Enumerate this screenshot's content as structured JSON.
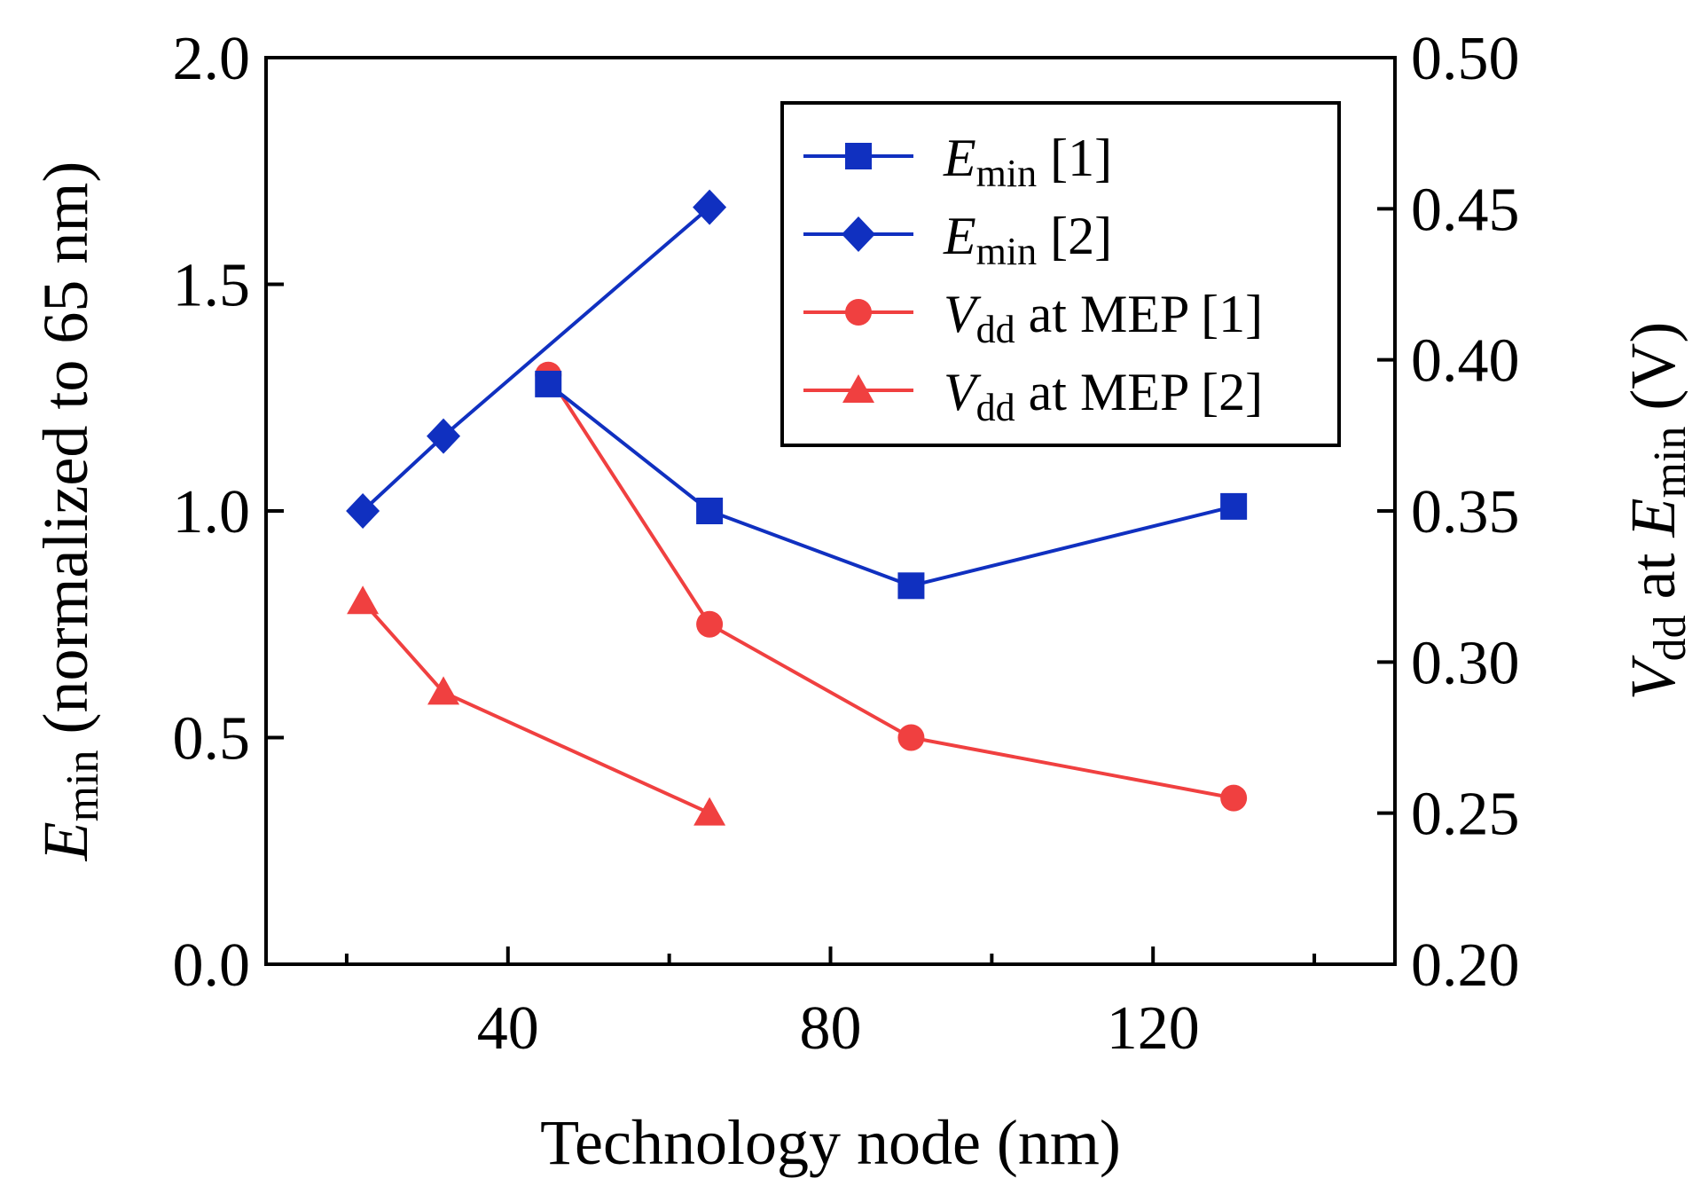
{
  "chart_data": {
    "type": "line",
    "xlabel": "Technology node (nm)",
    "ylabel": {
      "var": "E",
      "sub": "min",
      "rest": " (normalized to 65 nm)"
    },
    "y2label": {
      "var1": "V",
      "sub1": "dd",
      "mid": " at ",
      "var2": "E",
      "sub2": "min",
      "rest": " (V)"
    },
    "xlim": [
      10,
      150
    ],
    "ylim": [
      0,
      2.0
    ],
    "y2lim": [
      0.2,
      0.5
    ],
    "xticks_major": [
      40,
      80,
      120
    ],
    "xticks_minor": [
      20,
      60,
      100,
      140
    ],
    "yticks": [
      0.0,
      0.5,
      1.0,
      1.5,
      2.0
    ],
    "yticklabels": [
      "0.0",
      "0.5",
      "1.0",
      "1.5",
      "2.0"
    ],
    "y2ticks": [
      0.2,
      0.25,
      0.3,
      0.35,
      0.4,
      0.45,
      0.5
    ],
    "y2ticklabels": [
      "0.20",
      "0.25",
      "0.30",
      "0.35",
      "0.40",
      "0.45",
      "0.50"
    ],
    "legend_position": "top-right",
    "series": [
      {
        "name": "Emin [1]",
        "label": {
          "var": "E",
          "sub": "min",
          "rest": " [1]"
        },
        "axis": "left",
        "color": "#1030c0",
        "marker": "square",
        "x": [
          45,
          65,
          90,
          130
        ],
        "y": [
          1.28,
          1.0,
          0.835,
          1.01
        ]
      },
      {
        "name": "Emin [2]",
        "label": {
          "var": "E",
          "sub": "min",
          "rest": " [2]"
        },
        "axis": "left",
        "color": "#1030c0",
        "marker": "diamond",
        "x": [
          22,
          32,
          65
        ],
        "y": [
          1.0,
          1.165,
          1.67
        ]
      },
      {
        "name": "Vdd at MEP [1]",
        "label": {
          "var": "V",
          "sub": "dd",
          "rest": " at MEP [1]"
        },
        "axis": "right",
        "color": "#f04040",
        "marker": "circle",
        "x": [
          45,
          65,
          90,
          130
        ],
        "y": [
          0.395,
          0.3125,
          0.275,
          0.255
        ]
      },
      {
        "name": "Vdd at MEP [2]",
        "label": {
          "var": "V",
          "sub": "dd",
          "rest": " at MEP [2]"
        },
        "axis": "right",
        "color": "#f04040",
        "marker": "triangle",
        "x": [
          22,
          32,
          65
        ],
        "y": [
          0.32,
          0.29,
          0.25
        ]
      }
    ]
  }
}
